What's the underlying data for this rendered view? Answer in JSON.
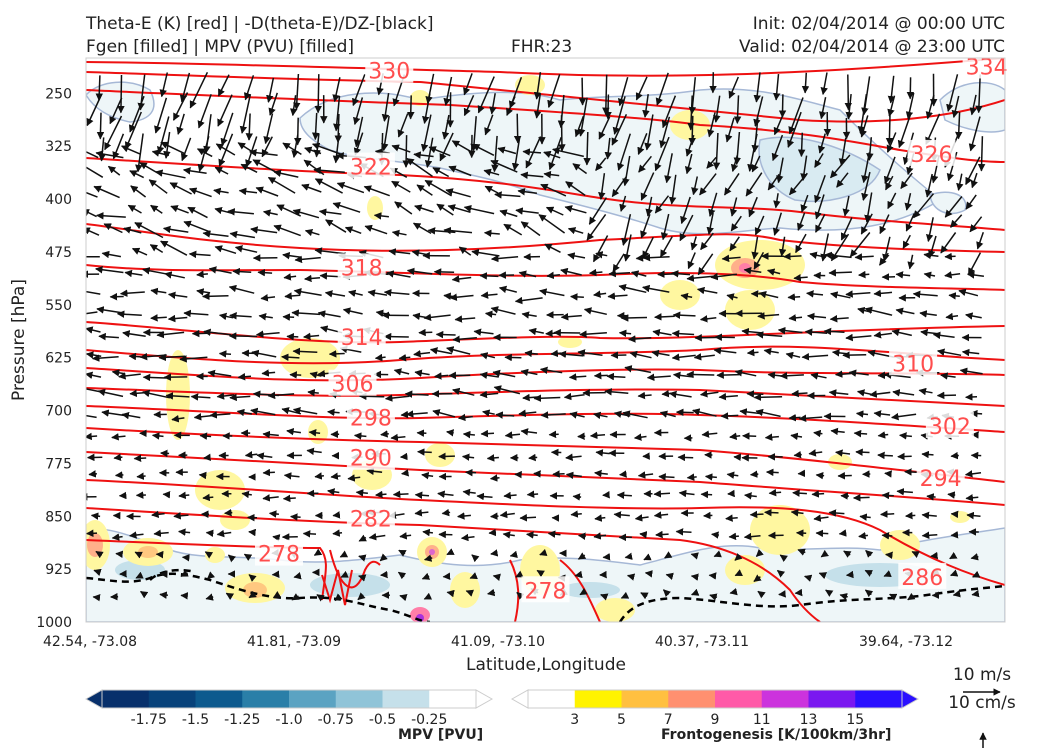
{
  "header": {
    "line1_left": "Theta-E (K) [red] | -D(theta-E)/DZ-[black]",
    "line2_left": "Fgen [filled] | MPV (PVU) [filled]",
    "fhr": "FHR:23",
    "init": "Init: 02/04/2014 @ 00:00 UTC",
    "valid": "Valid: 02/04/2014 @ 23:00 UTC"
  },
  "chart_data": {
    "type": "cross-section",
    "xlabel": "Latitude,Longitude",
    "ylabel": "Pressure [hPa]",
    "x_ticks": [
      "42.54, -73.08",
      "41.81, -73.09",
      "41.09, -73.10",
      "40.37, -73.11",
      "39.64, -73.12"
    ],
    "y_ticks": [
      "250",
      "325",
      "400",
      "475",
      "550",
      "625",
      "700",
      "775",
      "850",
      "925",
      "1000"
    ],
    "y_range": [
      1000,
      200
    ],
    "theta_e_contours": [
      {
        "label": "330",
        "x": 0.33,
        "p": 218
      },
      {
        "label": "334",
        "x": 0.98,
        "p": 212
      },
      {
        "label": "326",
        "x": 0.92,
        "p": 336
      },
      {
        "label": "322",
        "x": 0.31,
        "p": 354
      },
      {
        "label": "318",
        "x": 0.3,
        "p": 497
      },
      {
        "label": "314",
        "x": 0.3,
        "p": 596
      },
      {
        "label": "310",
        "x": 0.9,
        "p": 633
      },
      {
        "label": "306",
        "x": 0.29,
        "p": 662
      },
      {
        "label": "302",
        "x": 0.94,
        "p": 722
      },
      {
        "label": "298",
        "x": 0.31,
        "p": 710
      },
      {
        "label": "294",
        "x": 0.93,
        "p": 796
      },
      {
        "label": "290",
        "x": 0.31,
        "p": 767
      },
      {
        "label": "286",
        "x": 0.91,
        "p": 936
      },
      {
        "label": "282",
        "x": 0.31,
        "p": 853
      },
      {
        "label": "278",
        "x": 0.21,
        "p": 903
      },
      {
        "label": "278",
        "x": 0.5,
        "p": 955
      }
    ],
    "mpv_colorbar": {
      "label": "MPV [PVU]",
      "levels": [
        "-1.75",
        "-1.5",
        "-1.25",
        "-1.0",
        "-0.75",
        "-0.5",
        "-0.25"
      ],
      "colors": [
        "#08306b",
        "#08427a",
        "#0d5a8e",
        "#2a7fa8",
        "#5ba3c2",
        "#90c4d8",
        "#c5e0ea",
        "#ffffff"
      ]
    },
    "fgen_colorbar": {
      "label": "Frontogenesis [K/100km/3hr]",
      "levels": [
        "3",
        "5",
        "7",
        "9",
        "11",
        "13",
        "15"
      ],
      "colors": [
        "#ffffff",
        "#fff300",
        "#ffc040",
        "#ff9070",
        "#ff5aa8",
        "#cc33dd",
        "#7a18f0",
        "#2a10ff"
      ]
    },
    "reference_vectors": {
      "wind": "10 m/s",
      "vertical": "10 cm/s"
    }
  }
}
